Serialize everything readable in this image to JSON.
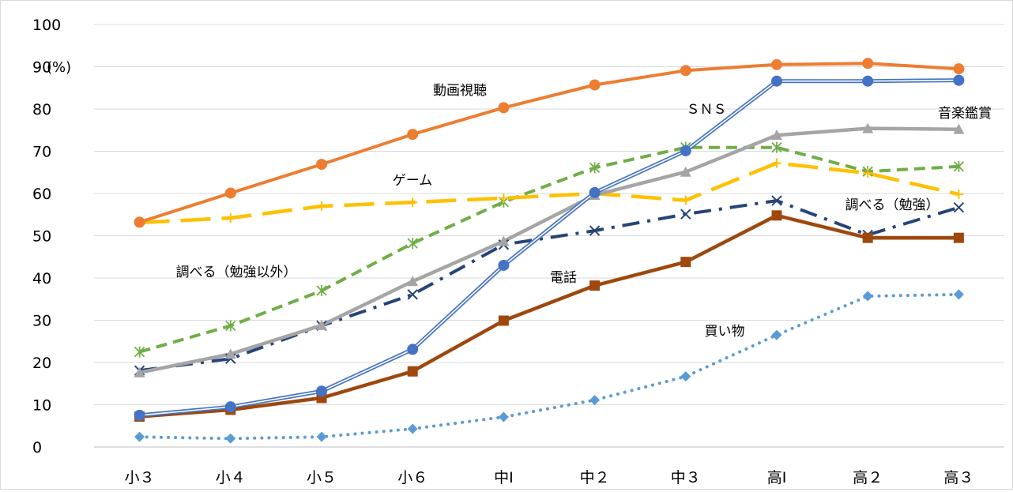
{
  "chart_data": {
    "type": "line",
    "title": "",
    "xlabel": "",
    "ylabel": "",
    "unit_label": "(%)",
    "ylim": [
      0,
      100
    ],
    "yticks": [
      0,
      10,
      20,
      30,
      40,
      50,
      60,
      70,
      80,
      90,
      100
    ],
    "grid": true,
    "legend": "none",
    "categories": [
      "小３",
      "小４",
      "小５",
      "小６",
      "中Ⅰ",
      "中２",
      "中３",
      "高Ⅰ",
      "高２",
      "高３"
    ],
    "series": [
      {
        "name": "動画視聴",
        "color": "#ed7d31",
        "style": "solid",
        "marker": "circle",
        "values": [
          53.2,
          60.1,
          66.9,
          74.0,
          80.3,
          85.7,
          89.1,
          90.5,
          90.8,
          89.5
        ]
      },
      {
        "name": "ＳＮＳ",
        "color": "#4472c4",
        "style": "double",
        "marker": "circle",
        "values": [
          7.5,
          9.5,
          13.2,
          23.1,
          43.0,
          60.2,
          70.1,
          86.6,
          86.6,
          86.8
        ]
      },
      {
        "name": "音楽鑑賞",
        "color": "#a5a5a5",
        "style": "solid-thick",
        "marker": "triangle",
        "values": [
          17.6,
          22.0,
          28.8,
          39.2,
          48.7,
          59.6,
          65.1,
          73.8,
          75.4,
          75.2
        ]
      },
      {
        "name": "ゲーム",
        "color": "#ffc000",
        "style": "longdash",
        "marker": "plus",
        "values": [
          53.1,
          54.2,
          57.0,
          57.9,
          58.9,
          60.0,
          58.4,
          67.2,
          64.8,
          59.8
        ]
      },
      {
        "name": "",
        "color": "#70ad47",
        "style": "dash",
        "marker": "star",
        "values": [
          22.5,
          28.7,
          37.0,
          48.2,
          58.0,
          66.1,
          70.9,
          70.9,
          65.2,
          66.4
        ]
      },
      {
        "name": "調べる（勉強）",
        "color": "#264478",
        "style": "dashdot",
        "marker": "x",
        "values": [
          18.1,
          20.9,
          28.7,
          36.1,
          47.9,
          51.2,
          55.1,
          58.3,
          50.2,
          56.7
        ]
      },
      {
        "name": "電話",
        "color": "#9e480e",
        "style": "solid-thick",
        "marker": "square",
        "values": [
          7.2,
          8.8,
          11.6,
          17.9,
          29.9,
          38.2,
          43.8,
          54.8,
          49.5,
          49.5
        ]
      },
      {
        "name": "買い物",
        "color": "#5b9bd5",
        "style": "dot",
        "marker": "diamond",
        "values": [
          2.4,
          2.0,
          2.4,
          4.3,
          7.1,
          11.1,
          16.7,
          26.5,
          35.7,
          36.1
        ]
      }
    ],
    "annotations": [
      "動画視聴",
      "ＳＮＳ",
      "音楽鑑賞",
      "ゲーム",
      "調べる（勉強）",
      "調べる（勉強以外）",
      "電話",
      "買い物"
    ]
  }
}
